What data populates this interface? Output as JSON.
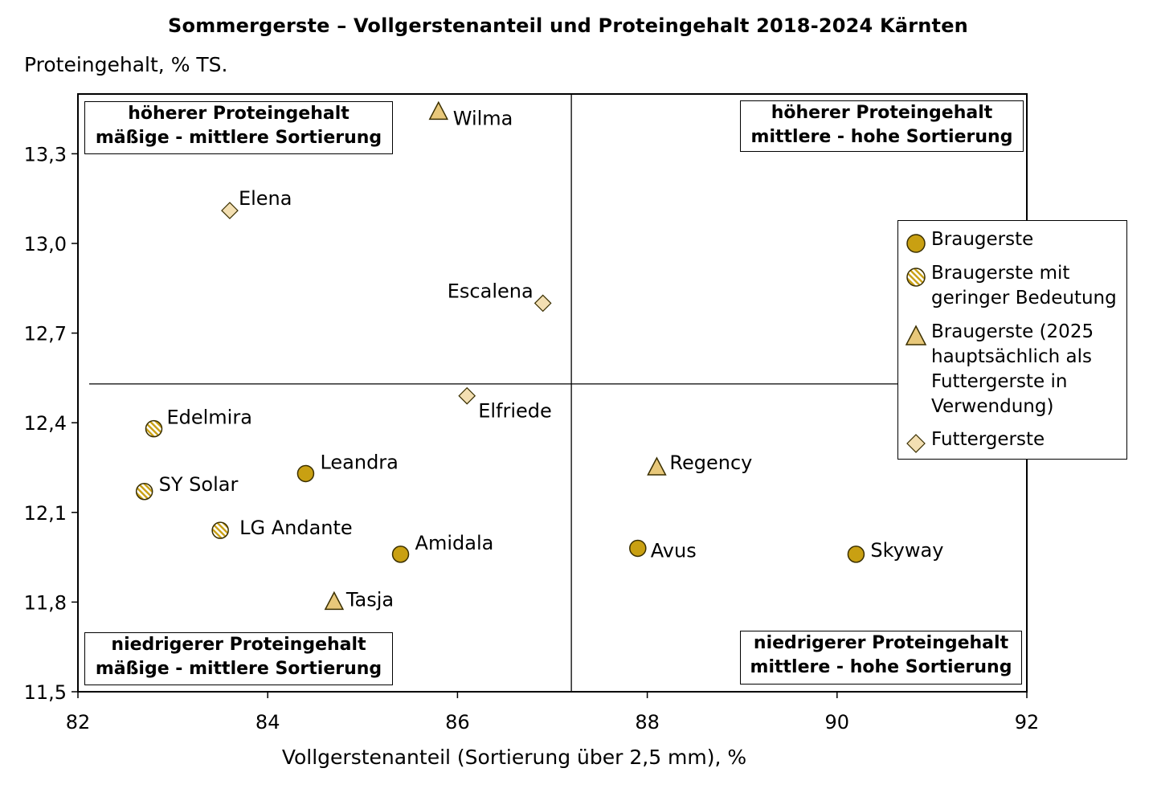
{
  "chart_data": {
    "type": "scatter",
    "title": "Sommergerste – Vollgerstenanteil und Proteingehalt 2018-2024 Kärnten",
    "xlabel": "Vollgerstenanteil (Sortierung über 2,5 mm), %",
    "ylabel": "Proteingehalt, % TS.",
    "xlim": [
      82,
      92
    ],
    "ylim": [
      11.5,
      13.5
    ],
    "xticks": [
      "82",
      "84",
      "86",
      "88",
      "90",
      "92"
    ],
    "yticks": [
      "11,5",
      "11,8",
      "12,1",
      "12,4",
      "12,7",
      "13,0",
      "13,3"
    ],
    "reference_lines": {
      "x": 87.2,
      "y": 12.53
    },
    "legend_position": "right",
    "colors": {
      "braugerste": "#C9A012",
      "triangle": "#E8C87A",
      "futter": "#F3DFB2",
      "edge": "#3a2f00"
    },
    "series": [
      {
        "name": "Braugerste",
        "marker": "circle",
        "points": [
          {
            "label": "Leandra",
            "x": 84.4,
            "y": 12.23
          },
          {
            "label": "Amidala",
            "x": 85.4,
            "y": 11.96
          },
          {
            "label": "Avus",
            "x": 87.9,
            "y": 11.98
          },
          {
            "label": "Skyway",
            "x": 90.2,
            "y": 11.96
          }
        ]
      },
      {
        "name": "Braugerste mit geringer Bedeutung",
        "marker": "hatched-circle",
        "points": [
          {
            "label": "Edelmira",
            "x": 82.8,
            "y": 12.38
          },
          {
            "label": "SY Solar",
            "x": 82.7,
            "y": 12.17
          },
          {
            "label": "LG Andante",
            "x": 83.5,
            "y": 12.04
          }
        ]
      },
      {
        "name": "Braugerste (2025 hauptsächlich als Futtergerste in Verwendung)",
        "marker": "triangle",
        "points": [
          {
            "label": "Wilma",
            "x": 85.8,
            "y": 13.44
          },
          {
            "label": "Regency",
            "x": 88.1,
            "y": 12.25
          },
          {
            "label": "Tasja",
            "x": 84.7,
            "y": 11.8
          }
        ]
      },
      {
        "name": "Futtergerste",
        "marker": "diamond",
        "points": [
          {
            "label": "Elena",
            "x": 83.6,
            "y": 13.11
          },
          {
            "label": "Escalena",
            "x": 86.9,
            "y": 12.8
          },
          {
            "label": "Elfriede",
            "x": 86.1,
            "y": 12.49
          }
        ]
      }
    ],
    "quadrants": {
      "top_left": [
        "höherer Proteingehalt",
        "mäßige - mittlere Sortierung"
      ],
      "top_right": [
        "höherer Proteingehalt",
        "mittlere - hohe Sortierung"
      ],
      "bottom_left": [
        "niedrigerer Proteingehalt",
        "mäßige - mittlere Sortierung"
      ],
      "bottom_right": [
        "niedrigerer Proteingehalt",
        "mittlere - hohe Sortierung"
      ]
    },
    "legend": [
      {
        "marker": "circle",
        "lines": [
          "Braugerste"
        ]
      },
      {
        "marker": "hatched-circle",
        "lines": [
          "Braugerste mit",
          "geringer Bedeutung"
        ]
      },
      {
        "marker": "triangle",
        "lines": [
          "Braugerste (2025",
          "hauptsächlich als",
          "Futtergerste in",
          "Verwendung)"
        ]
      },
      {
        "marker": "diamond",
        "lines": [
          "Futtergerste"
        ]
      }
    ]
  }
}
